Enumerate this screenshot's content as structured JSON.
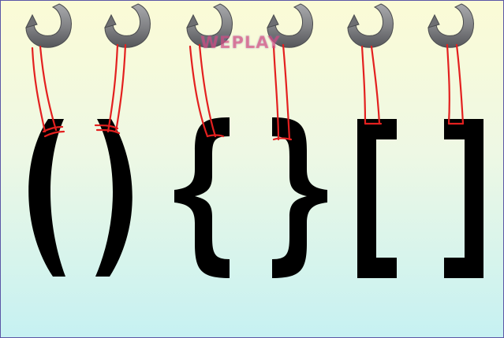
{
  "watermark": {
    "text": "WEPLAY"
  },
  "colors": {
    "hook_gray": "#7f8083",
    "rope_red": "#e3201f",
    "glyph_black": "#000000",
    "background_top": "#fbfbd6",
    "background_bottom": "#c6f1f2",
    "border": "#5b57a6"
  },
  "hanging_brackets": [
    {
      "glyph": "(",
      "name": "open-parenthesis"
    },
    {
      "glyph": ")",
      "name": "close-parenthesis"
    },
    {
      "glyph": "{",
      "name": "open-curly-brace"
    },
    {
      "glyph": "}",
      "name": "close-curly-brace"
    },
    {
      "glyph": "[",
      "name": "open-square-bracket"
    },
    {
      "glyph": "]",
      "name": "close-square-bracket"
    }
  ]
}
